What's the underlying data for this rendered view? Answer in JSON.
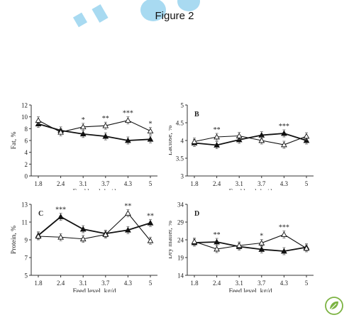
{
  "figure_title": "Figure 2",
  "logo_icon": "leaf-logo-icon",
  "watermark_icon": "diagonal-watermark-icon",
  "colors": {
    "line": "#111111",
    "watermark": "#9ad4ef",
    "logo": "#7cb342"
  },
  "chart_data": [
    {
      "type": "line",
      "panel_label": "",
      "xlabel": "Feed level, kg/d",
      "ylabel": "Fat, %",
      "categories": [
        "1.8",
        "2.4",
        "3.1",
        "3.7",
        "4.3",
        "5"
      ],
      "ylim": [
        0,
        12
      ],
      "yticks": [
        "0",
        "2",
        "4",
        "6",
        "8",
        "10",
        "12"
      ],
      "ytick_values": [
        0,
        2,
        4,
        6,
        8,
        10,
        12
      ],
      "series": [
        {
          "marker": "filled-triangle",
          "values": [
            8.8,
            7.7,
            7.1,
            6.7,
            6.0,
            6.2
          ]
        },
        {
          "marker": "open-triangle",
          "values": [
            9.4,
            7.4,
            8.3,
            8.5,
            9.4,
            7.6
          ]
        }
      ],
      "significance": [
        "",
        "",
        "*",
        "**",
        "***",
        "*"
      ]
    },
    {
      "type": "line",
      "panel_label": "B",
      "xlabel": "Feed level, kg/d",
      "ylabel": "Lactose, %",
      "categories": [
        "1.8",
        "2.4",
        "3.1",
        "3.7",
        "4.3",
        "5"
      ],
      "ylim": [
        3,
        5
      ],
      "yticks": [
        "3",
        "3.5",
        "4",
        "4.5",
        "5"
      ],
      "ytick_values": [
        3,
        3.5,
        4,
        4.5,
        5
      ],
      "series": [
        {
          "marker": "filled-triangle",
          "values": [
            3.93,
            3.87,
            4.02,
            4.15,
            4.2,
            4.0
          ]
        },
        {
          "marker": "open-triangle",
          "values": [
            3.97,
            4.1,
            4.13,
            4.0,
            3.88,
            4.12
          ]
        }
      ],
      "significance": [
        "",
        "**",
        "",
        "",
        "***",
        ""
      ]
    },
    {
      "type": "line",
      "panel_label": "C",
      "xlabel": "Feed level, kg/d",
      "ylabel": "Protein, %",
      "categories": [
        "1.8",
        "2.4",
        "3.1",
        "3.7",
        "4.3",
        "5"
      ],
      "ylim": [
        5,
        13
      ],
      "yticks": [
        "5",
        "7",
        "9",
        "11",
        "13"
      ],
      "ytick_values": [
        5,
        7,
        9,
        11,
        13
      ],
      "series": [
        {
          "marker": "filled-triangle",
          "values": [
            9.5,
            11.6,
            10.2,
            9.7,
            10.1,
            10.9
          ]
        },
        {
          "marker": "open-triangle",
          "values": [
            9.4,
            9.3,
            9.1,
            9.6,
            12.0,
            8.9
          ]
        }
      ],
      "significance": [
        "",
        "***",
        "",
        "",
        "**",
        "**"
      ]
    },
    {
      "type": "line",
      "panel_label": "D",
      "xlabel": "Feed level, kg/d",
      "ylabel": "Dry matter, %",
      "categories": [
        "1.8",
        "2.4",
        "3.1",
        "3.7",
        "4.3",
        "5"
      ],
      "ylim": [
        14,
        34
      ],
      "yticks": [
        "14",
        "19",
        "24",
        "29",
        "34"
      ],
      "ytick_values": [
        14,
        19,
        24,
        29,
        34
      ],
      "series": [
        {
          "marker": "filled-triangle",
          "values": [
            23.2,
            23.4,
            22.1,
            21.3,
            20.8,
            21.9
          ]
        },
        {
          "marker": "open-triangle",
          "values": [
            23.5,
            21.4,
            22.4,
            23.1,
            25.5,
            21.6
          ]
        }
      ],
      "significance": [
        "",
        "**",
        "",
        "*",
        "***",
        ""
      ]
    }
  ]
}
